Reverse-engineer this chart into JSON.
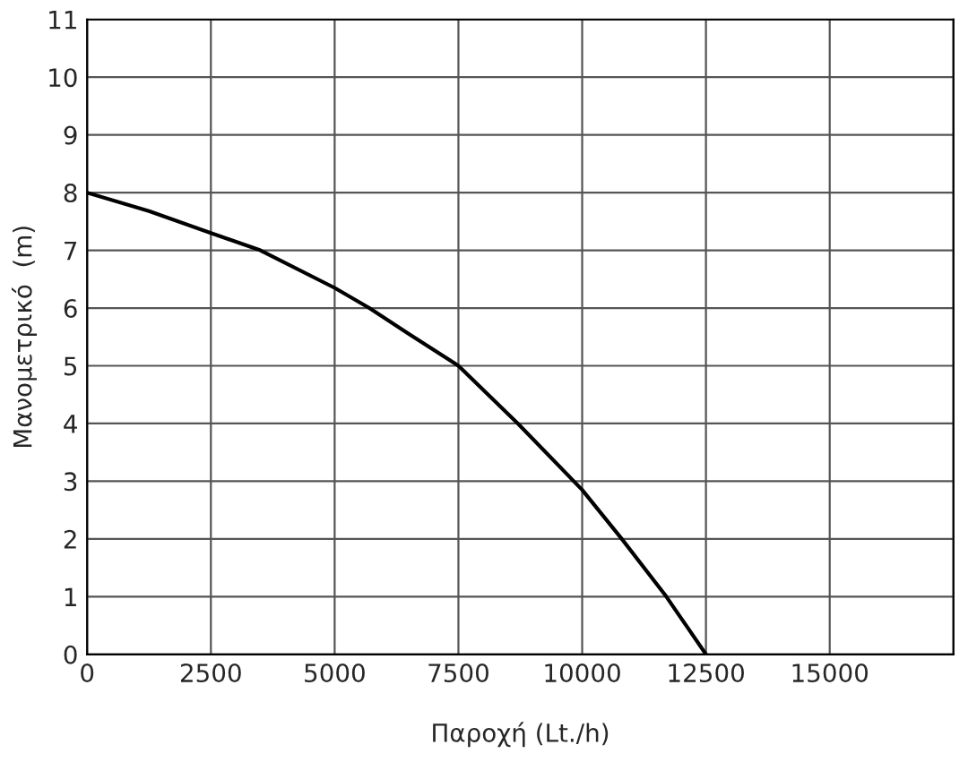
{
  "chart_data": {
    "type": "line",
    "xlabel": "Παροχή (Lt./h)",
    "ylabel": "Μανομετρικό  (m)",
    "series": [
      {
        "color": "#000000",
        "x": [
          0,
          1250,
          2500,
          3500,
          5000,
          5700,
          6500,
          7500,
          8700,
          10000,
          10800,
          11700,
          12500
        ],
        "values": [
          8,
          7.68,
          7.3,
          7.0,
          6.35,
          6.0,
          5.55,
          5.0,
          4.0,
          2.85,
          2.0,
          1.0,
          0
        ]
      }
    ],
    "xlim": [
      0,
      17500
    ],
    "ylim": [
      0,
      11
    ],
    "xticks": [
      0,
      2500,
      5000,
      7500,
      10000,
      12500,
      15000,
      {
        "value": 17500,
        "label": null
      }
    ],
    "yticks": [
      0,
      1,
      2,
      3,
      4,
      5,
      6,
      7,
      8,
      9,
      10,
      11
    ],
    "grid": true,
    "marker": "none",
    "line_style": "solid"
  }
}
